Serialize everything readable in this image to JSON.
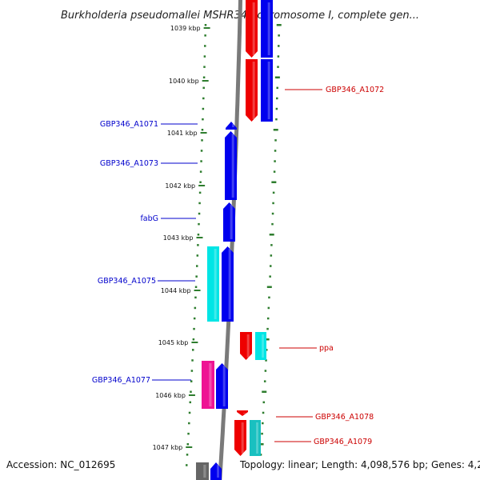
{
  "title": "Burkholderia pseudomallei MSHR346 chromosome I, complete gen...",
  "footer": {
    "accession": "Accession: NC_012695",
    "summary": "Topology: linear; Length: 4,098,576 bp; Genes: 4,262"
  },
  "colors": {
    "forward": "#0000ee",
    "reverse": "#ee0000",
    "cyan": "#00e5e5",
    "pink": "#ee1493",
    "teal": "#19c0c0",
    "tick": "#2e7d2e",
    "label_forward": "#0000cc",
    "label_reverse": "#cc0000"
  },
  "chart_data": {
    "type": "genome-map",
    "axis_unit": "kbp",
    "ticks": [
      "1039 kbp",
      "1040 kbp",
      "1041 kbp",
      "1042 kbp",
      "1043 kbp",
      "1044 kbp",
      "1045 kbp",
      "1046 kbp",
      "1047 kbp"
    ],
    "labels": [
      {
        "text": "GBP346_A1072",
        "strand": "reverse"
      },
      {
        "text": "GBP346_A1071",
        "strand": "forward"
      },
      {
        "text": "GBP346_A1073",
        "strand": "forward"
      },
      {
        "text": "fabG",
        "strand": "forward"
      },
      {
        "text": "GBP346_A1075",
        "strand": "forward"
      },
      {
        "text": "ppa",
        "strand": "reverse"
      },
      {
        "text": "GBP346_A1077",
        "strand": "forward"
      },
      {
        "text": "GBP346_A1078",
        "strand": "reverse"
      },
      {
        "text": "GBP346_A1079",
        "strand": "reverse"
      }
    ]
  }
}
